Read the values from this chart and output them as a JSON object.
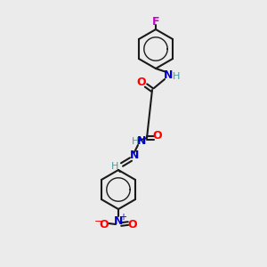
{
  "background_color": "#ebebeb",
  "bond_color": "#1a1a1a",
  "colors": {
    "O": "#ff0000",
    "N": "#0000cc",
    "F": "#cc00cc",
    "H": "#4a9a9a",
    "C": "#1a1a1a",
    "NO2_N": "#0000cc",
    "NO2_O": "#ff0000"
  },
  "figsize": [
    3.0,
    3.0
  ],
  "dpi": 100
}
